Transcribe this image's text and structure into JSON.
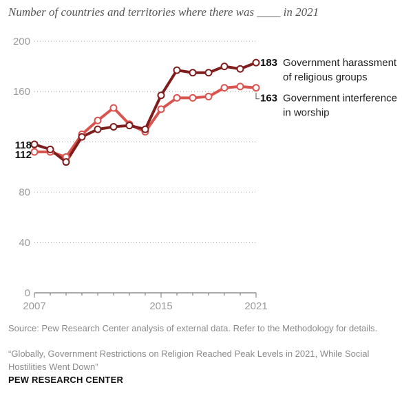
{
  "chart_data": {
    "type": "line",
    "title": "Number of countries and territories where there was ____ in 2021",
    "x_ticks": [
      "2007",
      "2015",
      "2021"
    ],
    "y_ticks": [
      0,
      40,
      80,
      120,
      160,
      200
    ],
    "y_tick_labels": [
      "0",
      "40",
      "80",
      "",
      "160",
      "200"
    ],
    "xlim": [
      2007,
      2021
    ],
    "ylim": [
      0,
      200
    ],
    "series": [
      {
        "name": "Government harassment of religious groups",
        "label_lines": [
          "Government harassment",
          "of religious groups"
        ],
        "color": "#7f1d1d",
        "x": [
          2007,
          2008,
          2009,
          2010,
          2011,
          2012,
          2013,
          2014,
          2015,
          2016,
          2017,
          2018,
          2019,
          2020,
          2021
        ],
        "values": [
          118,
          114,
          104,
          124,
          130,
          132,
          133,
          130,
          157,
          177,
          175,
          175,
          180,
          178,
          183
        ],
        "start_label": "118",
        "end_label": "183"
      },
      {
        "name": "Government interference in worship",
        "label_lines": [
          "Government interference",
          "in worship"
        ],
        "color": "#d9534f",
        "x": [
          2007,
          2008,
          2009,
          2010,
          2011,
          2012,
          2013,
          2014,
          2015,
          2016,
          2017,
          2018,
          2019,
          2020,
          2021
        ],
        "values": [
          112,
          112,
          108,
          126,
          137,
          147,
          134,
          128,
          146,
          155,
          155,
          156,
          163,
          164,
          163
        ],
        "start_label": "112",
        "end_label": "163"
      }
    ]
  },
  "footer": {
    "source": "Source: Pew Research Center analysis of external data. Refer to the Methodology for details.",
    "report": "“Globally, Government Restrictions on Religion Reached Peak Levels in 2021, While Social Hostilities Went Down”",
    "brand": "PEW RESEARCH CENTER"
  },
  "colors": {
    "harassment": "#7f1d1d",
    "interference": "#d9534f",
    "axis_text": "#9a9a9a"
  }
}
